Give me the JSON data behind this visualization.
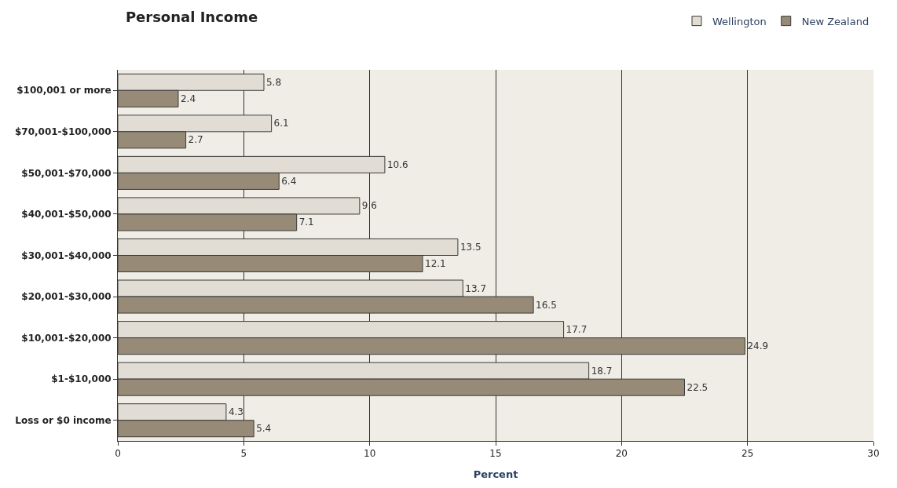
{
  "chart_data": {
    "type": "bar",
    "orientation": "horizontal",
    "title": "Personal Income",
    "xlabel": "Percent",
    "categories": [
      "$100,001 or more",
      "$70,001-$100,000",
      "$50,001-$70,000",
      "$40,001-$50,000",
      "$30,001-$40,000",
      "$20,001-$30,000",
      "$10,001-$20,000",
      "$1-$10,000",
      "Loss or $0 income"
    ],
    "series": [
      {
        "name": "Wellington",
        "color": "#e2ddd4",
        "values": [
          5.8,
          6.1,
          10.6,
          9.6,
          13.5,
          13.7,
          17.7,
          18.7,
          4.3
        ]
      },
      {
        "name": "New Zealand",
        "color": "#978b78",
        "values": [
          2.4,
          2.7,
          6.4,
          7.1,
          12.1,
          16.5,
          24.9,
          22.5,
          5.4
        ]
      }
    ],
    "xlim": [
      0,
      30
    ],
    "xticks": [
      0,
      5,
      10,
      15,
      20,
      25,
      30
    ],
    "grid": "x",
    "legend": "top right",
    "data_labels": true
  }
}
